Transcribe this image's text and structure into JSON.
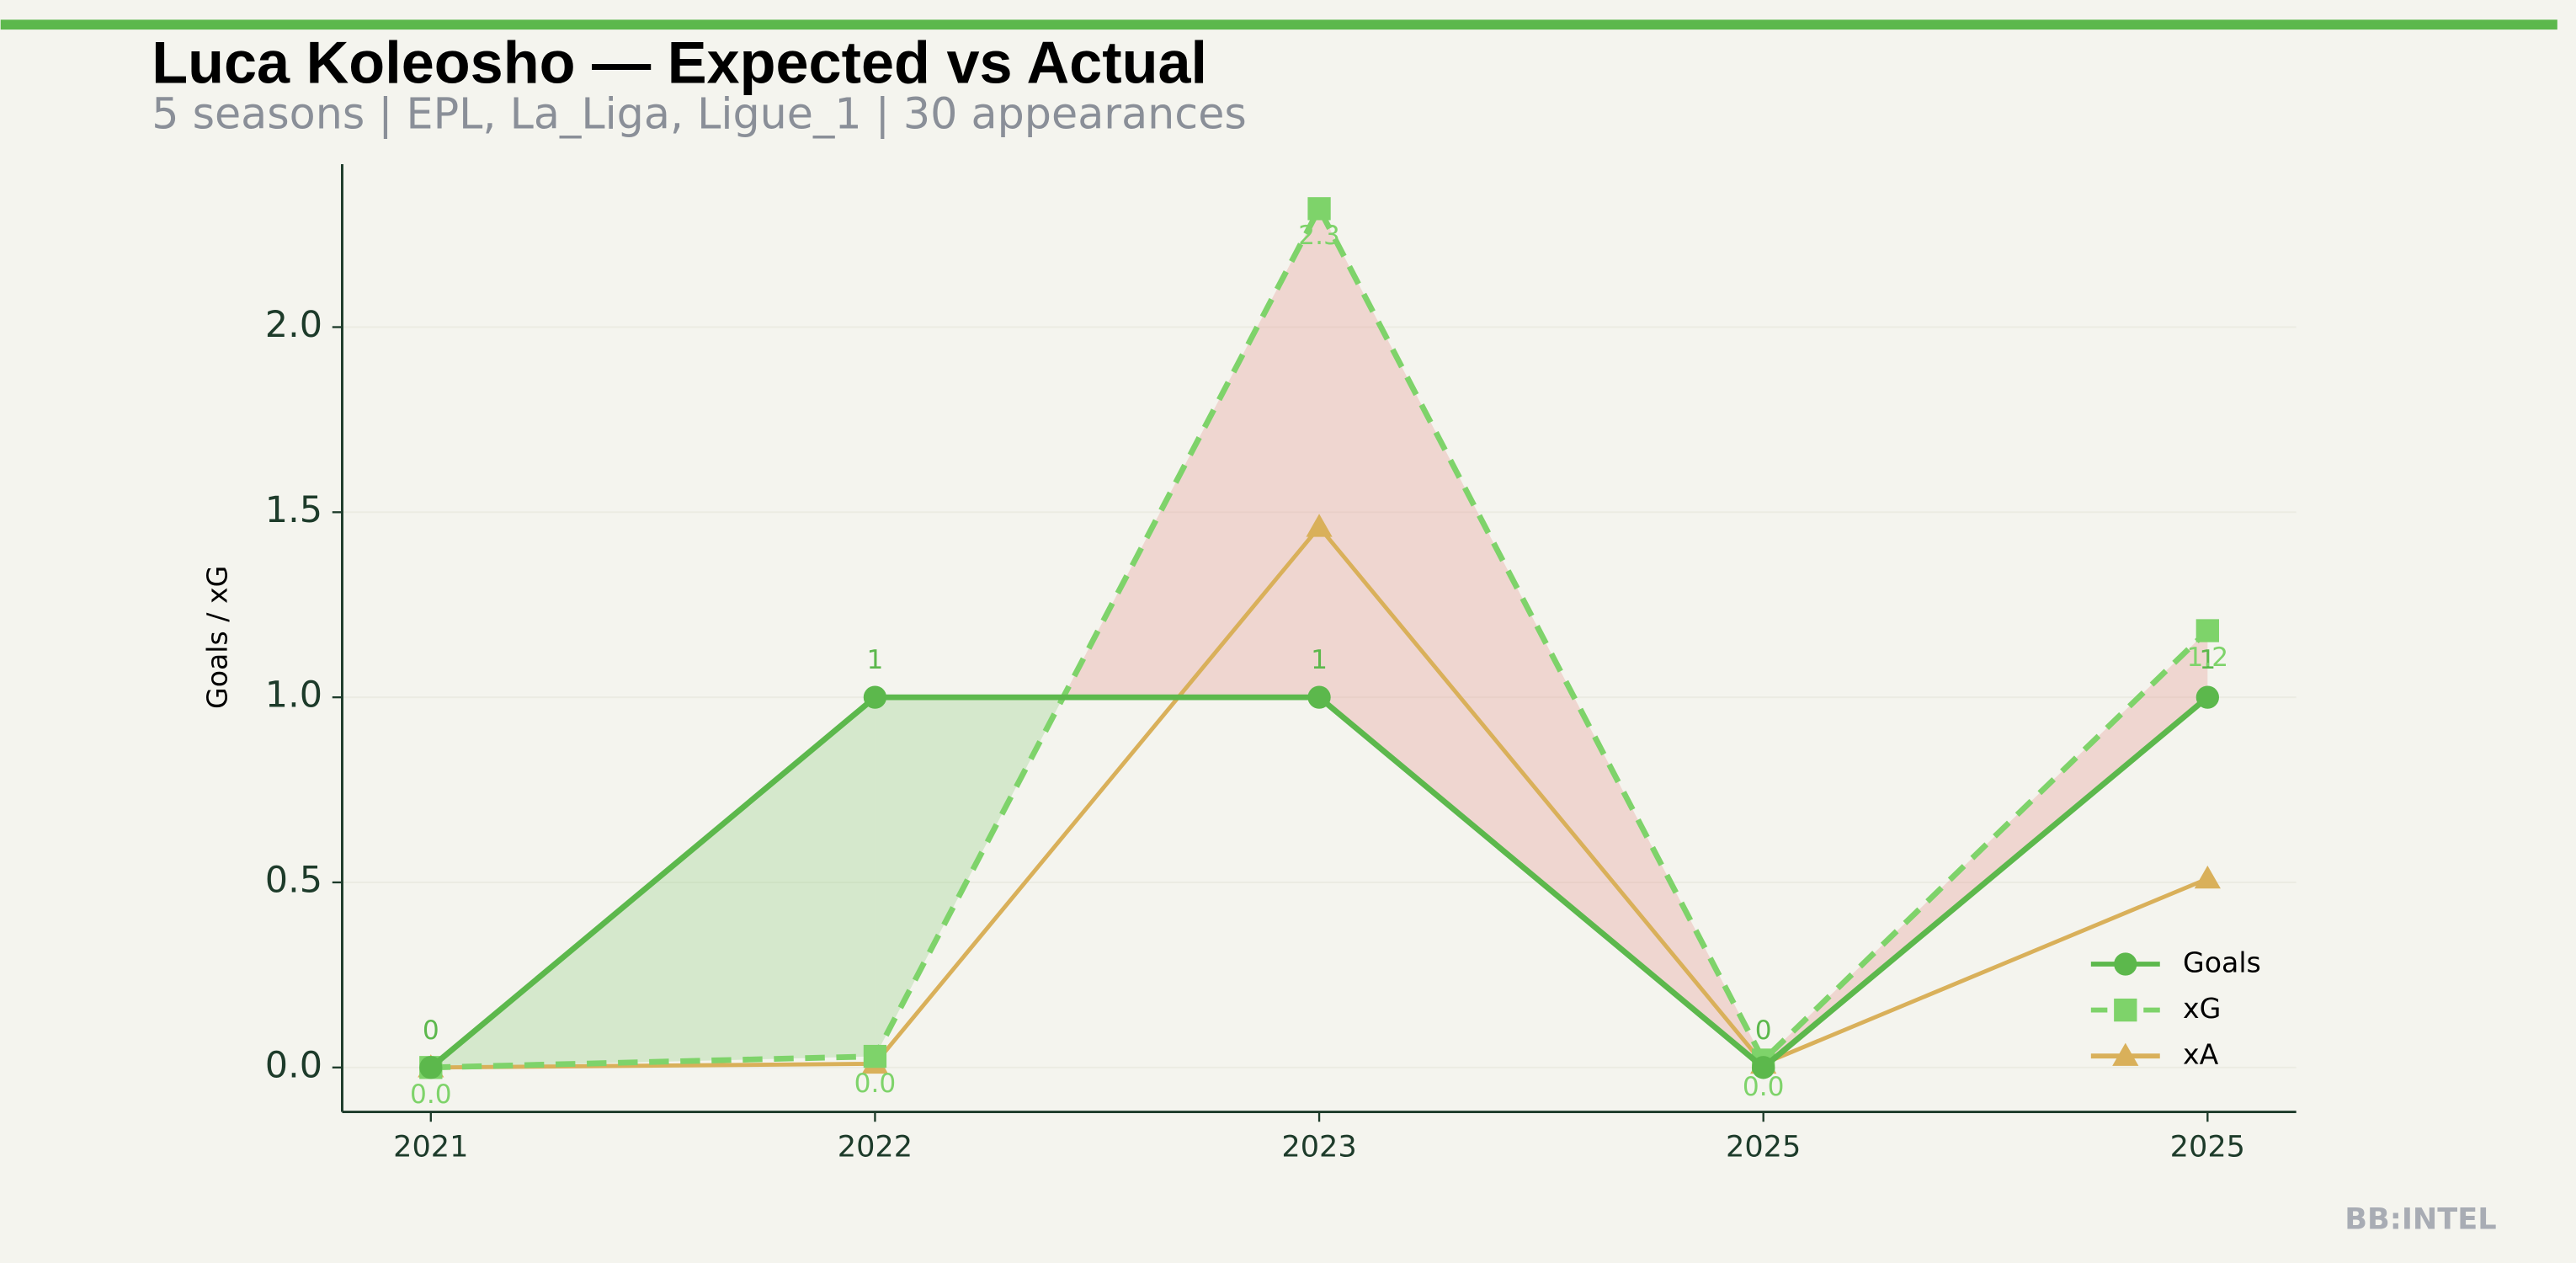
{
  "chart_data": {
    "type": "line",
    "title": "Luca Koleosho — Expected vs Actual",
    "subtitle": "5 seasons | EPL, La_Liga, Ligue_1 | 30 appearances",
    "ylabel": "Goals / xG",
    "categories": [
      "2021",
      "2022",
      "2023",
      "2025",
      "2025"
    ],
    "series": [
      {
        "name": "Goals",
        "color": "#5cb84c",
        "linestyle": "solid",
        "marker": "circle",
        "values": [
          0,
          1,
          1,
          0,
          1
        ]
      },
      {
        "name": "xG",
        "color": "#7ed36a",
        "linestyle": "dashed",
        "marker": "square",
        "values": [
          0,
          0.03,
          2.32,
          0.02,
          1.18
        ],
        "value_labels": [
          "0.0",
          "0.0",
          "2.3",
          "0.0",
          "1.2"
        ]
      },
      {
        "name": "xA",
        "color": "#d9b05a",
        "linestyle": "solid",
        "marker": "triangle",
        "values": [
          0,
          0.01,
          1.46,
          0.01,
          0.51
        ]
      }
    ],
    "ylim": [
      -0.12,
      2.44
    ],
    "yticks": [
      {
        "value": 0,
        "label": "0.0"
      },
      0.5,
      {
        "value": 1,
        "label": "1.0"
      },
      1.5,
      {
        "value": 2,
        "label": "2.0"
      }
    ],
    "grid": true,
    "legend": "lower right",
    "fill_colors": {
      "above": "#e6928c",
      "below": "#8fcc7e"
    },
    "brand": "BB:INTEL"
  }
}
